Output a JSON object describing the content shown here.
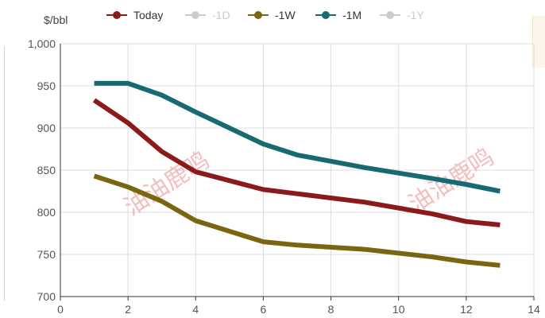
{
  "chart_data": {
    "type": "line",
    "ylabel": "$/bbl",
    "xlim": [
      0,
      14
    ],
    "ylim": [
      700,
      1000
    ],
    "x_ticks": [
      "0",
      "2",
      "4",
      "6",
      "8",
      "10",
      "12",
      "14"
    ],
    "y_ticks": [
      "700",
      "750",
      "800",
      "850",
      "900",
      "950",
      "1,000"
    ],
    "grid": true,
    "legend_position": "top",
    "series": [
      {
        "name": "Today",
        "color": "#8b1a1a",
        "visible": true,
        "x": [
          1,
          2,
          3,
          4,
          6,
          7,
          9,
          11,
          12,
          13
        ],
        "y": [
          933,
          906,
          872,
          848,
          827,
          822,
          812,
          798,
          789,
          785
        ]
      },
      {
        "name": "-1D",
        "color": "#cccccc",
        "visible": false,
        "x": [],
        "y": []
      },
      {
        "name": "-1W",
        "color": "#7a6510",
        "visible": true,
        "x": [
          1,
          2,
          3,
          4,
          6,
          7,
          9,
          11,
          12,
          13
        ],
        "y": [
          843,
          830,
          813,
          790,
          765,
          761,
          756,
          747,
          741,
          737
        ]
      },
      {
        "name": "-1M",
        "color": "#186a72",
        "visible": true,
        "x": [
          1,
          2,
          3,
          4,
          6,
          7,
          9,
          11,
          12,
          13
        ],
        "y": [
          953,
          953,
          939,
          919,
          881,
          868,
          853,
          840,
          833,
          825
        ]
      },
      {
        "name": "-1Y",
        "color": "#cccccc",
        "visible": false,
        "x": [],
        "y": []
      }
    ]
  },
  "watermark": "油油鹿鸣"
}
